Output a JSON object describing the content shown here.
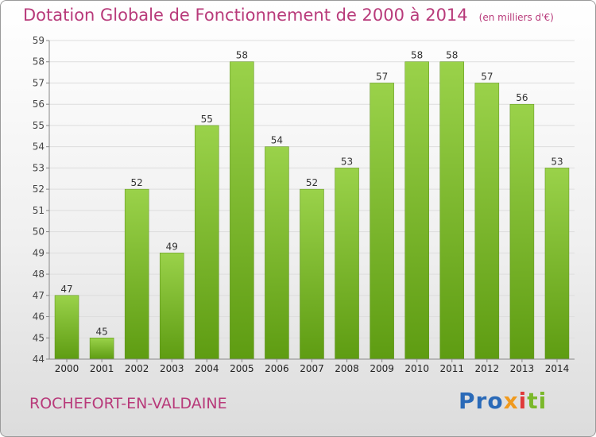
{
  "header": {
    "title": "Dotation Globale de Fonctionnement de 2000 à 2014",
    "unit": "(en milliers d'€)"
  },
  "footer": {
    "commune": "ROCHEFORT-EN-VALDAINE",
    "logo": [
      "Pro",
      "x",
      "i",
      "ti"
    ]
  },
  "colors": {
    "bar_light": "#9ad24a",
    "bar_dark": "#5e9c12",
    "title": "#b83a7a"
  },
  "chart_data": {
    "type": "bar",
    "categories": [
      "2000",
      "2001",
      "2002",
      "2003",
      "2004",
      "2005",
      "2006",
      "2007",
      "2008",
      "2009",
      "2010",
      "2011",
      "2012",
      "2013",
      "2014"
    ],
    "values": [
      47,
      45,
      52,
      49,
      55,
      58,
      54,
      52,
      53,
      57,
      58,
      58,
      57,
      56,
      53
    ],
    "ylim": [
      44,
      59
    ],
    "yticks": [
      44,
      45,
      46,
      47,
      48,
      49,
      50,
      51,
      52,
      53,
      54,
      55,
      56,
      57,
      58,
      59
    ],
    "grid": true,
    "legend": "none"
  }
}
